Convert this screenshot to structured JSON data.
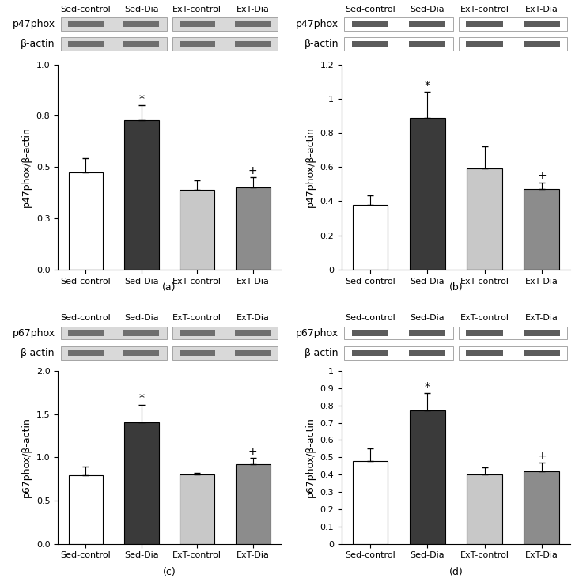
{
  "chart_data": [
    {
      "type": "bar",
      "panel": "(a)",
      "ylabel": "p47phox/β-actin",
      "blot_rows": [
        "p47phox",
        "β-actin"
      ],
      "categories": [
        "Sed-control",
        "Sed-Dia",
        "ExT-control",
        "ExT-Dia"
      ],
      "values": [
        0.475,
        0.73,
        0.39,
        0.4
      ],
      "errors": [
        0.07,
        0.07,
        0.045,
        0.05
      ],
      "significance": [
        null,
        "*",
        null,
        "+"
      ],
      "colors": [
        "#ffffff",
        "#3a3a3a",
        "#c8c8c8",
        "#8c8c8c"
      ],
      "ylim": [
        0,
        1.0
      ],
      "yticks": [
        {
          "value": 0,
          "label": "0.0"
        },
        {
          "value": 0.25,
          "label": "0.3"
        },
        {
          "value": 0.5,
          "label": "0.5"
        },
        {
          "value": 0.75,
          "label": "0.8"
        },
        {
          "value": 1.0,
          "label": "1.0"
        }
      ]
    },
    {
      "type": "bar",
      "panel": "(b)",
      "ylabel": "p47phox/β-actin",
      "blot_rows": [
        "p47phox",
        "β-actin"
      ],
      "categories": [
        "Sed-control",
        "Sed-Dia",
        "ExT-control",
        "ExT-Dia"
      ],
      "values": [
        0.38,
        0.89,
        0.59,
        0.47
      ],
      "errors": [
        0.055,
        0.15,
        0.13,
        0.04
      ],
      "significance": [
        null,
        "*",
        null,
        "+"
      ],
      "colors": [
        "#ffffff",
        "#3a3a3a",
        "#c8c8c8",
        "#8c8c8c"
      ],
      "ylim": [
        0,
        1.2
      ],
      "yticks": [
        0,
        0.2,
        0.4,
        0.6,
        0.8,
        1,
        1.2
      ]
    },
    {
      "type": "bar",
      "panel": "(c)",
      "ylabel": "p67phox/β-actin",
      "blot_rows": [
        "p67phox",
        "β-actin"
      ],
      "categories": [
        "Sed-control",
        "Sed-Dia",
        "ExT-control",
        "ExT-Dia"
      ],
      "values": [
        0.79,
        1.41,
        0.8,
        0.92
      ],
      "errors": [
        0.1,
        0.2,
        0.02,
        0.07
      ],
      "significance": [
        null,
        "*",
        null,
        "+"
      ],
      "colors": [
        "#ffffff",
        "#3a3a3a",
        "#c8c8c8",
        "#8c8c8c"
      ],
      "ylim": [
        0,
        2.0
      ],
      "yticks": [
        {
          "value": 0,
          "label": "0.0"
        },
        0.5,
        {
          "value": 1,
          "label": "1.0"
        },
        1.5,
        {
          "value": 2,
          "label": "2.0"
        }
      ]
    },
    {
      "type": "bar",
      "panel": "(d)",
      "ylabel": "p67phox/β-actin",
      "blot_rows": [
        "p67phox",
        "β-actin"
      ],
      "categories": [
        "Sed-control",
        "Sed-Dia",
        "ExT-control",
        "ExT-Dia"
      ],
      "values": [
        0.48,
        0.77,
        0.4,
        0.42
      ],
      "errors": [
        0.07,
        0.1,
        0.04,
        0.05
      ],
      "significance": [
        null,
        "*",
        null,
        "+"
      ],
      "colors": [
        "#ffffff",
        "#3a3a3a",
        "#c8c8c8",
        "#8c8c8c"
      ],
      "ylim": [
        0,
        1
      ],
      "yticks": [
        0,
        0.1,
        0.2,
        0.3,
        0.4,
        0.5,
        0.6,
        0.7,
        0.8,
        0.9,
        1
      ]
    }
  ]
}
